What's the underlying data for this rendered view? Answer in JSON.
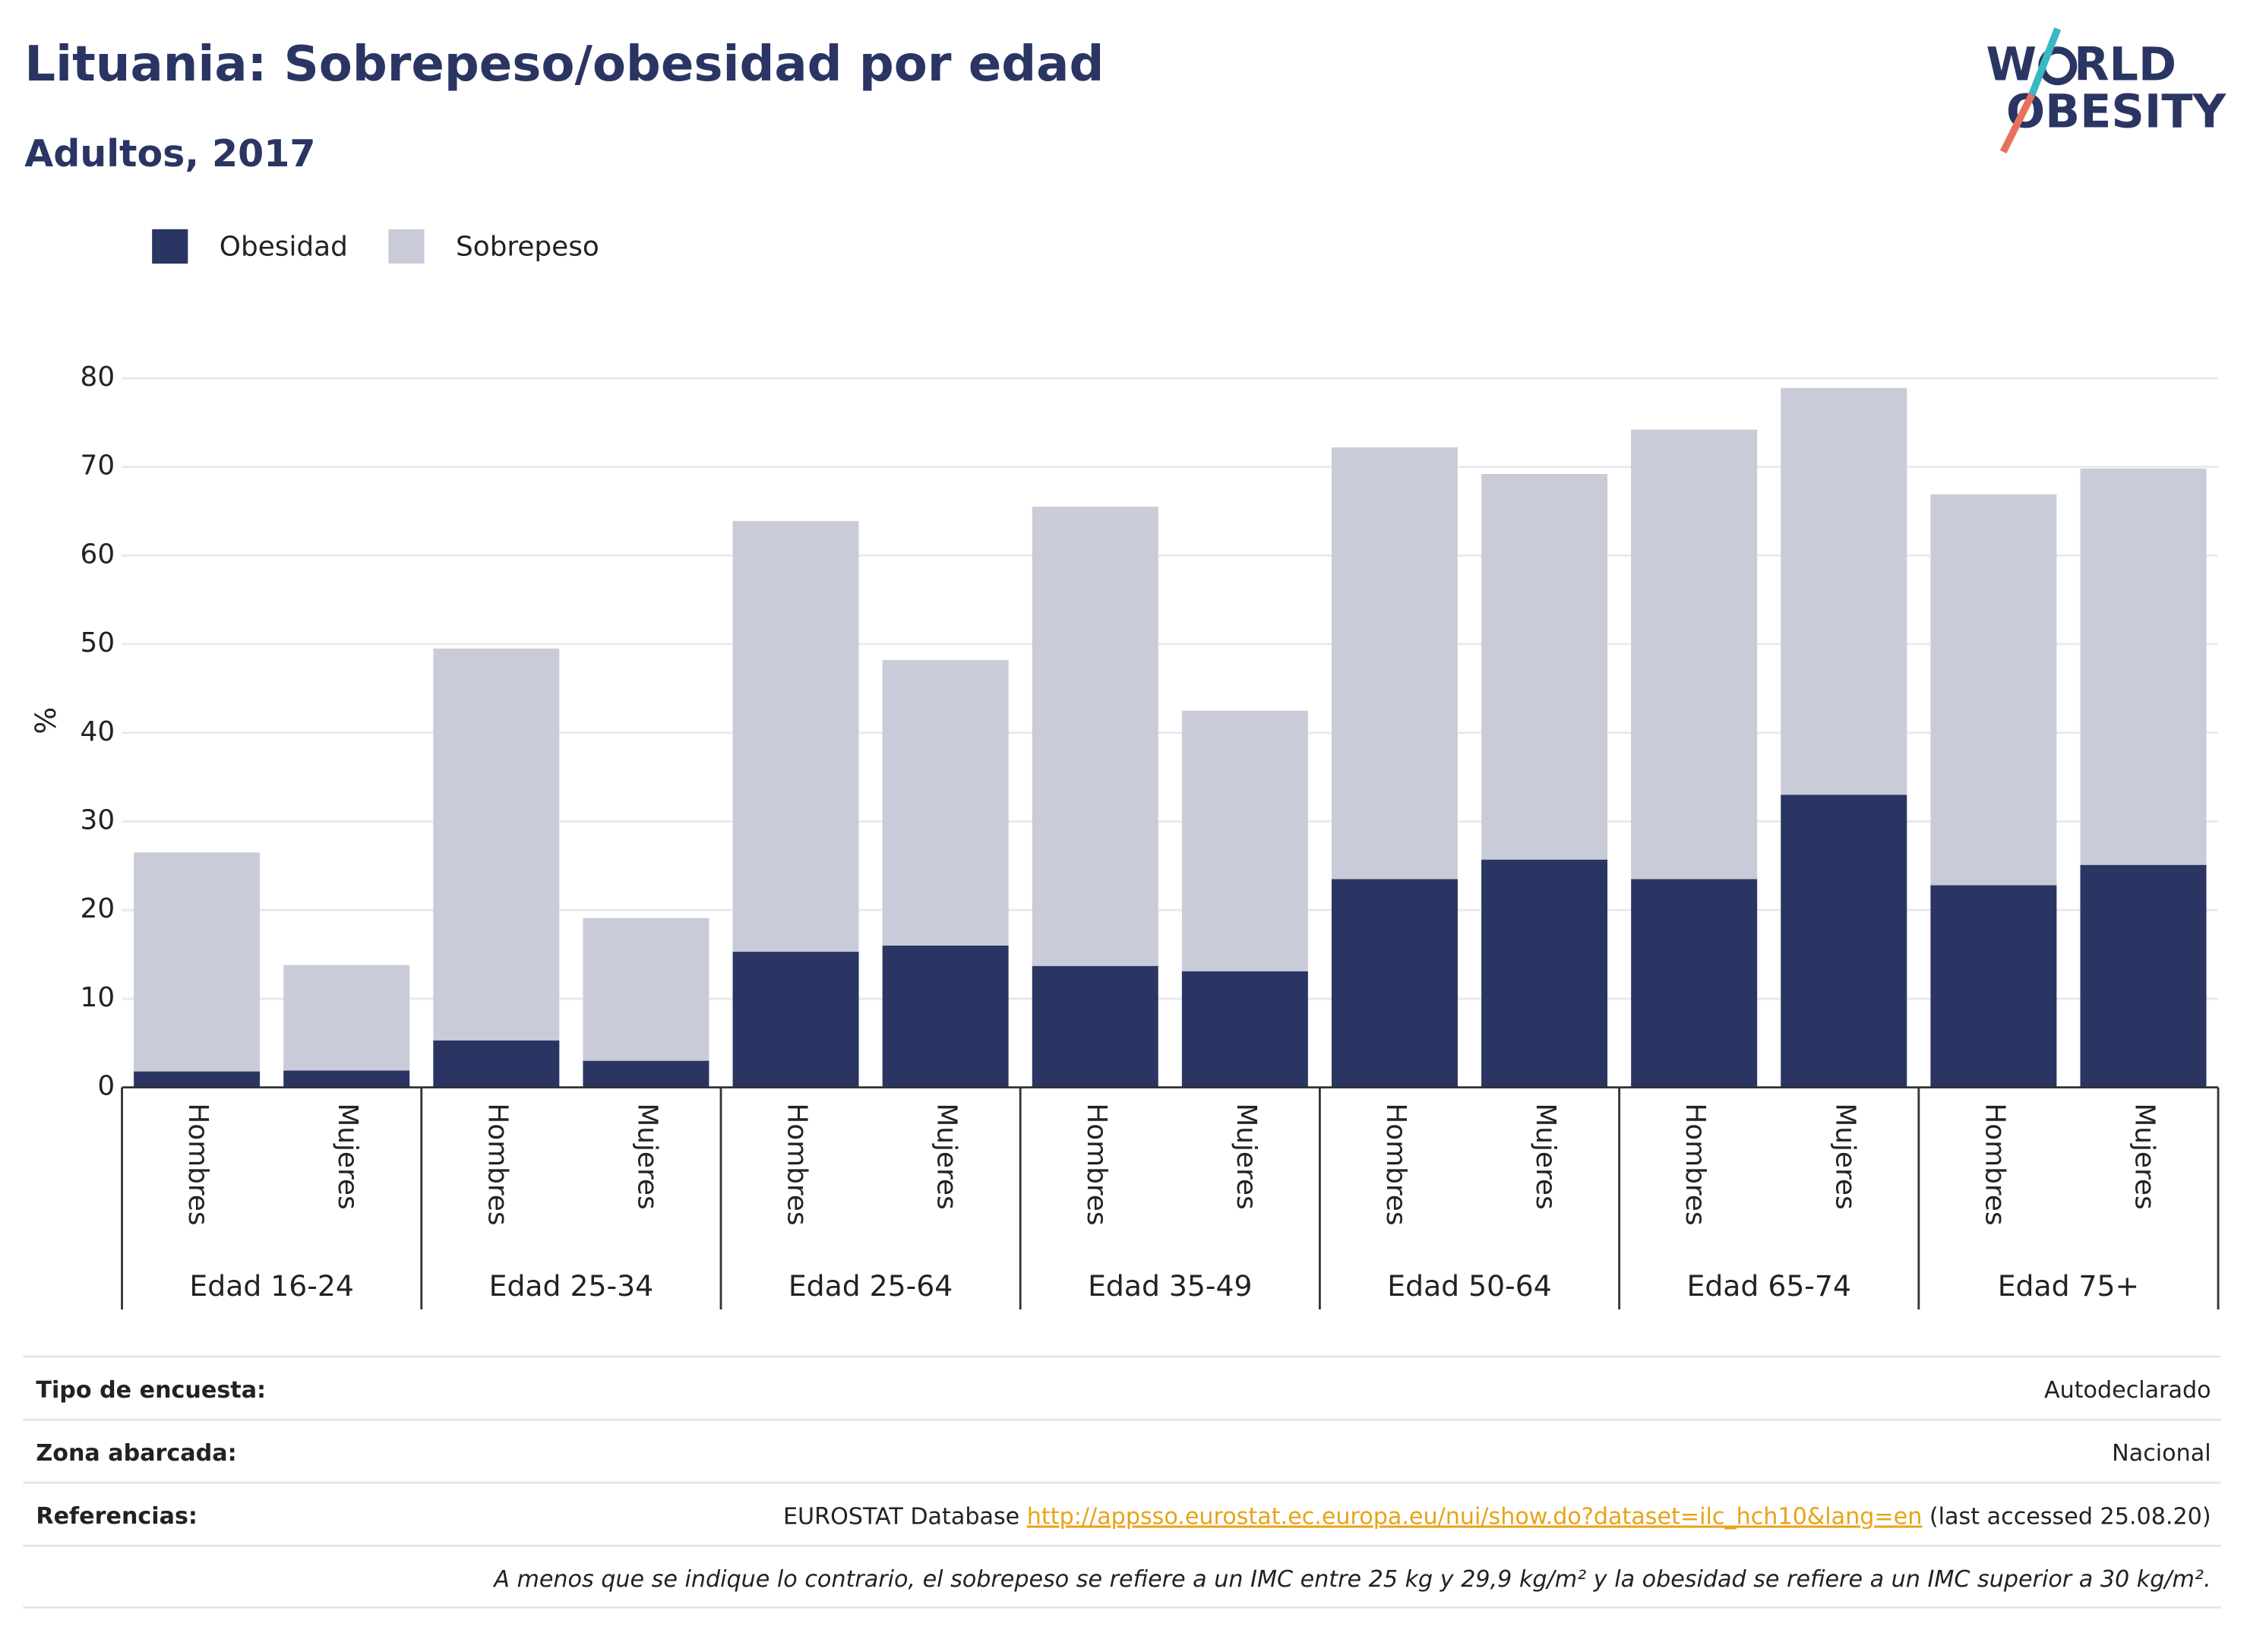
{
  "chart_data": {
    "type": "stacked_bar",
    "title": "Lituania: Sobrepeso/obesidad por edad",
    "subtitle": "Adultos, 2017",
    "y_label": "%",
    "categories": [
      "Hombres",
      "Mujeres",
      "Hombres",
      "Mujeres",
      "Hombres",
      "Mujeres",
      "Hombres",
      "Mujeres",
      "Hombres",
      "Mujeres",
      "Hombres",
      "Mujeres",
      "Hombres",
      "Mujeres"
    ],
    "groups": [
      "Edad 16-24",
      "Edad 25-34",
      "Edad 25-64",
      "Edad 35-49",
      "Edad 50-64",
      "Edad 65-74",
      "Edad 75+"
    ],
    "series": [
      {
        "name": "Obesidad",
        "color": "#2a3563",
        "values": [
          1.8,
          1.9,
          5.3,
          3.0,
          15.3,
          16.0,
          13.7,
          13.1,
          23.5,
          25.7,
          23.5,
          33.0,
          22.8,
          25.1
        ]
      },
      {
        "name": "Sobrepeso",
        "color": "#c9ccd8",
        "values": [
          24.7,
          11.9,
          44.2,
          16.1,
          48.6,
          32.2,
          51.8,
          29.4,
          48.7,
          43.5,
          50.7,
          45.9,
          44.1,
          44.7
        ]
      }
    ],
    "ylim": [
      0,
      80
    ],
    "yticks": [
      0,
      10,
      20,
      30,
      40,
      50,
      60,
      70,
      80
    ],
    "grid": true
  },
  "logo": [
    "W",
    "RLD",
    "OBESITY"
  ],
  "footer": {
    "rows": [
      {
        "label": "Tipo de encuesta:",
        "value": "Autodeclarado"
      },
      {
        "label": "Zona abarcada:",
        "value": "Nacional"
      },
      {
        "label": "Referencias:",
        "value": [
          "EUROSTAT Database ",
          "http://appsso.eurostat.ec.europa.eu/nui/show.do?dataset=ilc_hch10&lang=en",
          " (last accessed 25.08.20)"
        ]
      }
    ],
    "note": "A menos que se indique lo contrario, el sobrepeso se refiere a un IMC entre 25 kg y 29,9 kg/m² y la obesidad se refiere a un IMC superior a 30 kg/m²."
  }
}
